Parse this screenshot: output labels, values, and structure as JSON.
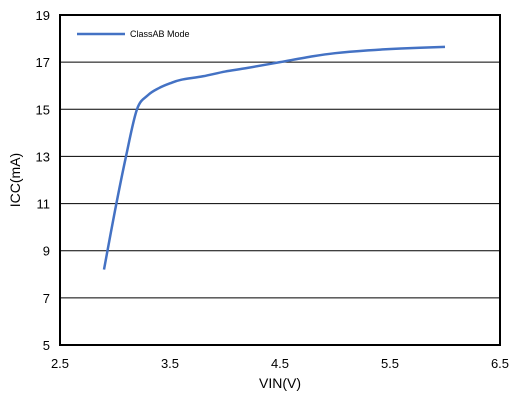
{
  "chart_data": {
    "type": "line",
    "title": "",
    "xlabel": "VIN(V)",
    "ylabel": "ICC(mA)",
    "xlim": [
      2.5,
      6.5
    ],
    "ylim": [
      5,
      19
    ],
    "xticks": [
      2.5,
      3.5,
      4.5,
      5.5,
      6.5
    ],
    "xtick_labels": [
      "2.5",
      "3.5",
      "4.5",
      "5.5",
      "6.5"
    ],
    "yticks": [
      5,
      7,
      9,
      11,
      13,
      15,
      17,
      19
    ],
    "ytick_labels": [
      "5",
      "7",
      "9",
      "11",
      "13",
      "15",
      "17",
      "19"
    ],
    "grid": "horizontal",
    "legend_position": "top-left",
    "series": [
      {
        "name": "ClassAB Mode",
        "color": "#4472C4",
        "x": [
          2.9,
          3.0,
          3.1,
          3.2,
          3.3,
          3.4,
          3.5,
          3.6,
          3.8,
          4.0,
          4.2,
          4.5,
          4.8,
          5.0,
          5.3,
          5.6,
          6.0
        ],
        "y": [
          8.2,
          10.7,
          13.0,
          15.0,
          15.6,
          15.9,
          16.1,
          16.25,
          16.4,
          16.6,
          16.75,
          17.0,
          17.25,
          17.38,
          17.5,
          17.58,
          17.65
        ]
      }
    ]
  }
}
